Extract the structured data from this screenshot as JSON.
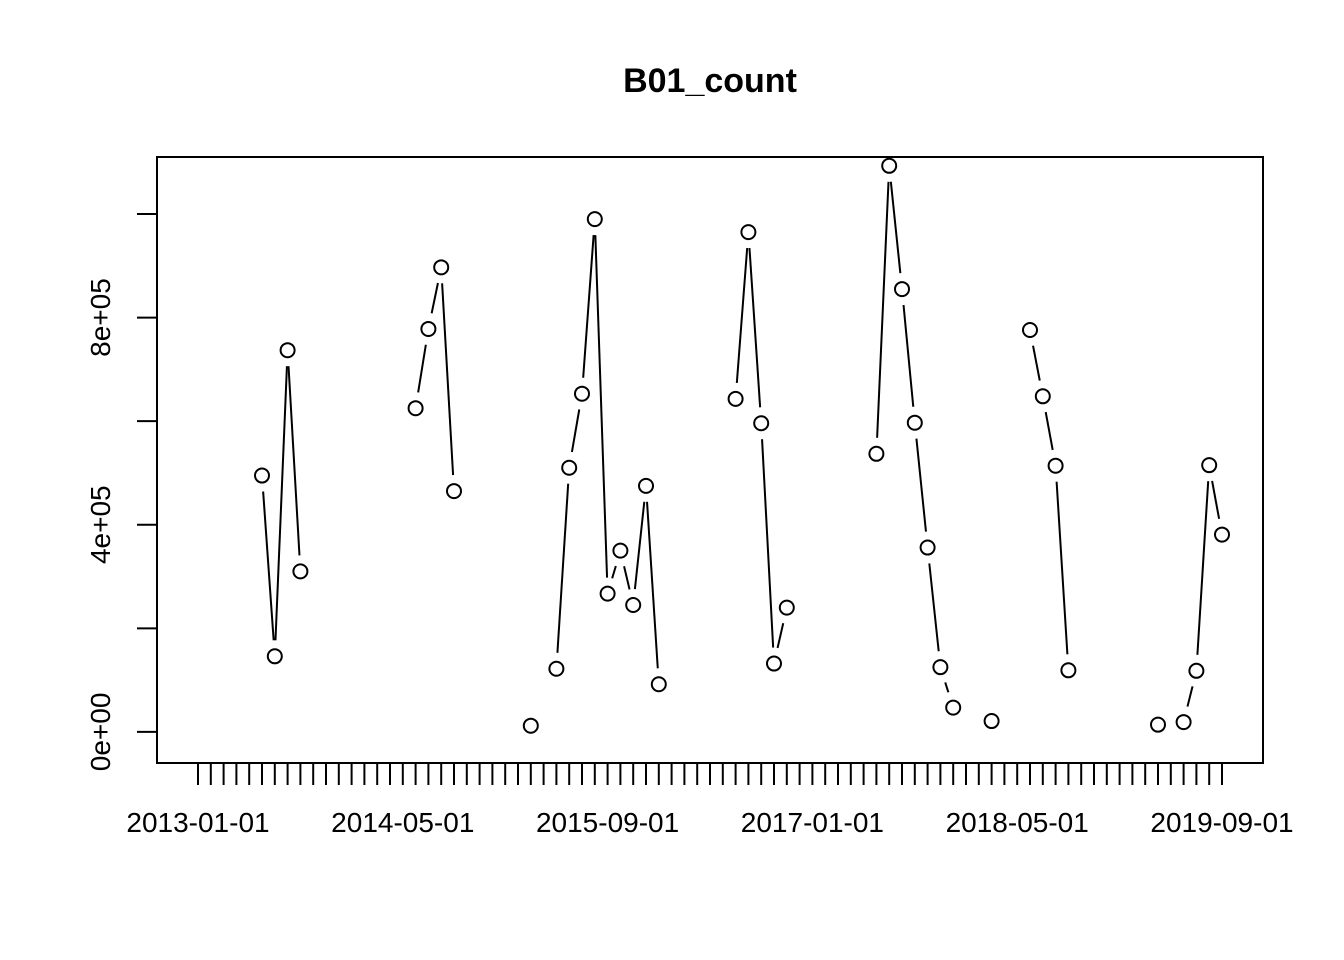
{
  "chart_data": {
    "type": "line",
    "title": "B01_count",
    "xlabel": "",
    "ylabel": "",
    "x_start": "2013-01-01",
    "x_end": "2019-09-01",
    "x_tick_labels": [
      "2013-01-01",
      "2014-05-01",
      "2015-09-01",
      "2017-01-01",
      "2018-05-01",
      "2019-09-01"
    ],
    "y_tick_values": [
      0,
      200000,
      400000,
      600000,
      800000,
      1000000
    ],
    "y_tick_labels": [
      "0e+00",
      "4e+05",
      "8e+05"
    ],
    "ylim": [
      -60000,
      1110000
    ],
    "grid": false,
    "markers": "open-circle",
    "series": [
      {
        "points": [
          {
            "x": "2013-06-01",
            "y": 495000
          },
          {
            "x": "2013-07-01",
            "y": 146000
          },
          {
            "x": "2013-08-01",
            "y": 737000
          },
          {
            "x": "2013-09-01",
            "y": 310000
          },
          {
            "x": "2014-06-01",
            "y": 625000
          },
          {
            "x": "2014-07-01",
            "y": 778000
          },
          {
            "x": "2014-08-01",
            "y": 897000
          },
          {
            "x": "2014-09-01",
            "y": 465000
          },
          {
            "x": "2015-03-01",
            "y": 12000
          },
          {
            "x": "2015-05-01",
            "y": 122000
          },
          {
            "x": "2015-06-01",
            "y": 510000
          },
          {
            "x": "2015-07-01",
            "y": 653000
          },
          {
            "x": "2015-08-01",
            "y": 990000
          },
          {
            "x": "2015-09-01",
            "y": 267000
          },
          {
            "x": "2015-10-01",
            "y": 350000
          },
          {
            "x": "2015-11-01",
            "y": 245000
          },
          {
            "x": "2015-12-01",
            "y": 475000
          },
          {
            "x": "2016-01-01",
            "y": 92000
          },
          {
            "x": "2016-07-01",
            "y": 643000
          },
          {
            "x": "2016-08-01",
            "y": 965000
          },
          {
            "x": "2016-09-01",
            "y": 596000
          },
          {
            "x": "2016-10-01",
            "y": 132000
          },
          {
            "x": "2016-11-01",
            "y": 240000
          },
          {
            "x": "2017-06-01",
            "y": 537000
          },
          {
            "x": "2017-07-01",
            "y": 1093000
          },
          {
            "x": "2017-08-01",
            "y": 855000
          },
          {
            "x": "2017-09-01",
            "y": 597000
          },
          {
            "x": "2017-10-01",
            "y": 356000
          },
          {
            "x": "2017-11-01",
            "y": 125000
          },
          {
            "x": "2017-12-01",
            "y": 47000
          },
          {
            "x": "2018-03-01",
            "y": 21000
          },
          {
            "x": "2018-06-01",
            "y": 776000
          },
          {
            "x": "2018-07-01",
            "y": 648000
          },
          {
            "x": "2018-08-01",
            "y": 514000
          },
          {
            "x": "2018-09-01",
            "y": 119000
          },
          {
            "x": "2019-04-01",
            "y": 14000
          },
          {
            "x": "2019-06-01",
            "y": 19000
          },
          {
            "x": "2019-07-01",
            "y": 118000
          },
          {
            "x": "2019-08-01",
            "y": 515000
          },
          {
            "x": "2019-09-01",
            "y": 381000
          }
        ]
      }
    ]
  }
}
